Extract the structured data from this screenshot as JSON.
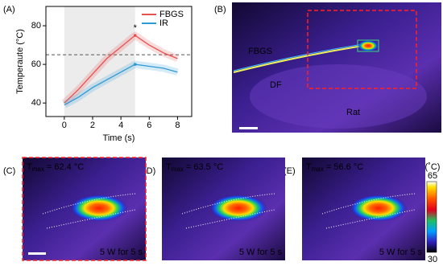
{
  "chart_data": {
    "type": "line",
    "ylabel": "Temperaute (°C)",
    "xlabel": "Time (s)",
    "x": [
      0,
      1,
      2,
      3,
      4,
      5,
      6,
      7,
      8
    ],
    "series": [
      {
        "name": "FBGS",
        "color": "#e8504f",
        "values": [
          40,
          47,
          55,
          63,
          69,
          75,
          70,
          66,
          63
        ]
      },
      {
        "name": "IR",
        "color": "#2f9bd6",
        "values": [
          39,
          43,
          48,
          52,
          56,
          60,
          59,
          58,
          56
        ]
      }
    ],
    "xlim": [
      -1.3,
      9
    ],
    "ylim": [
      33,
      90
    ],
    "xticks": [
      0,
      2,
      4,
      6,
      8
    ],
    "yticks": [
      40,
      60,
      80
    ],
    "shade": [
      0,
      5
    ],
    "hline": 65,
    "star": {
      "text": "*",
      "x": 5,
      "y": 75
    },
    "legend": "upper right"
  },
  "labels": [
    "(A)",
    "(B)",
    "(C)",
    "(D)",
    "(E)"
  ],
  "image_b": {
    "fiber": "FBGS",
    "df": "DF",
    "rat": "Rat"
  },
  "thermal": [
    {
      "t": "T",
      "sub": "max",
      "rest": " = 62.4 °C",
      "caption": "5 W for 5 s"
    },
    {
      "t": "T",
      "sub": "max",
      "rest": " = 63.5 °C",
      "caption": "5 W for 5 s"
    },
    {
      "t": "T",
      "sub": "max",
      "rest": " = 56.6 °C",
      "caption": "5 W for 5 s"
    }
  ],
  "colorbar": {
    "unit": "(˚C)",
    "top": "65",
    "bottom": "30"
  }
}
